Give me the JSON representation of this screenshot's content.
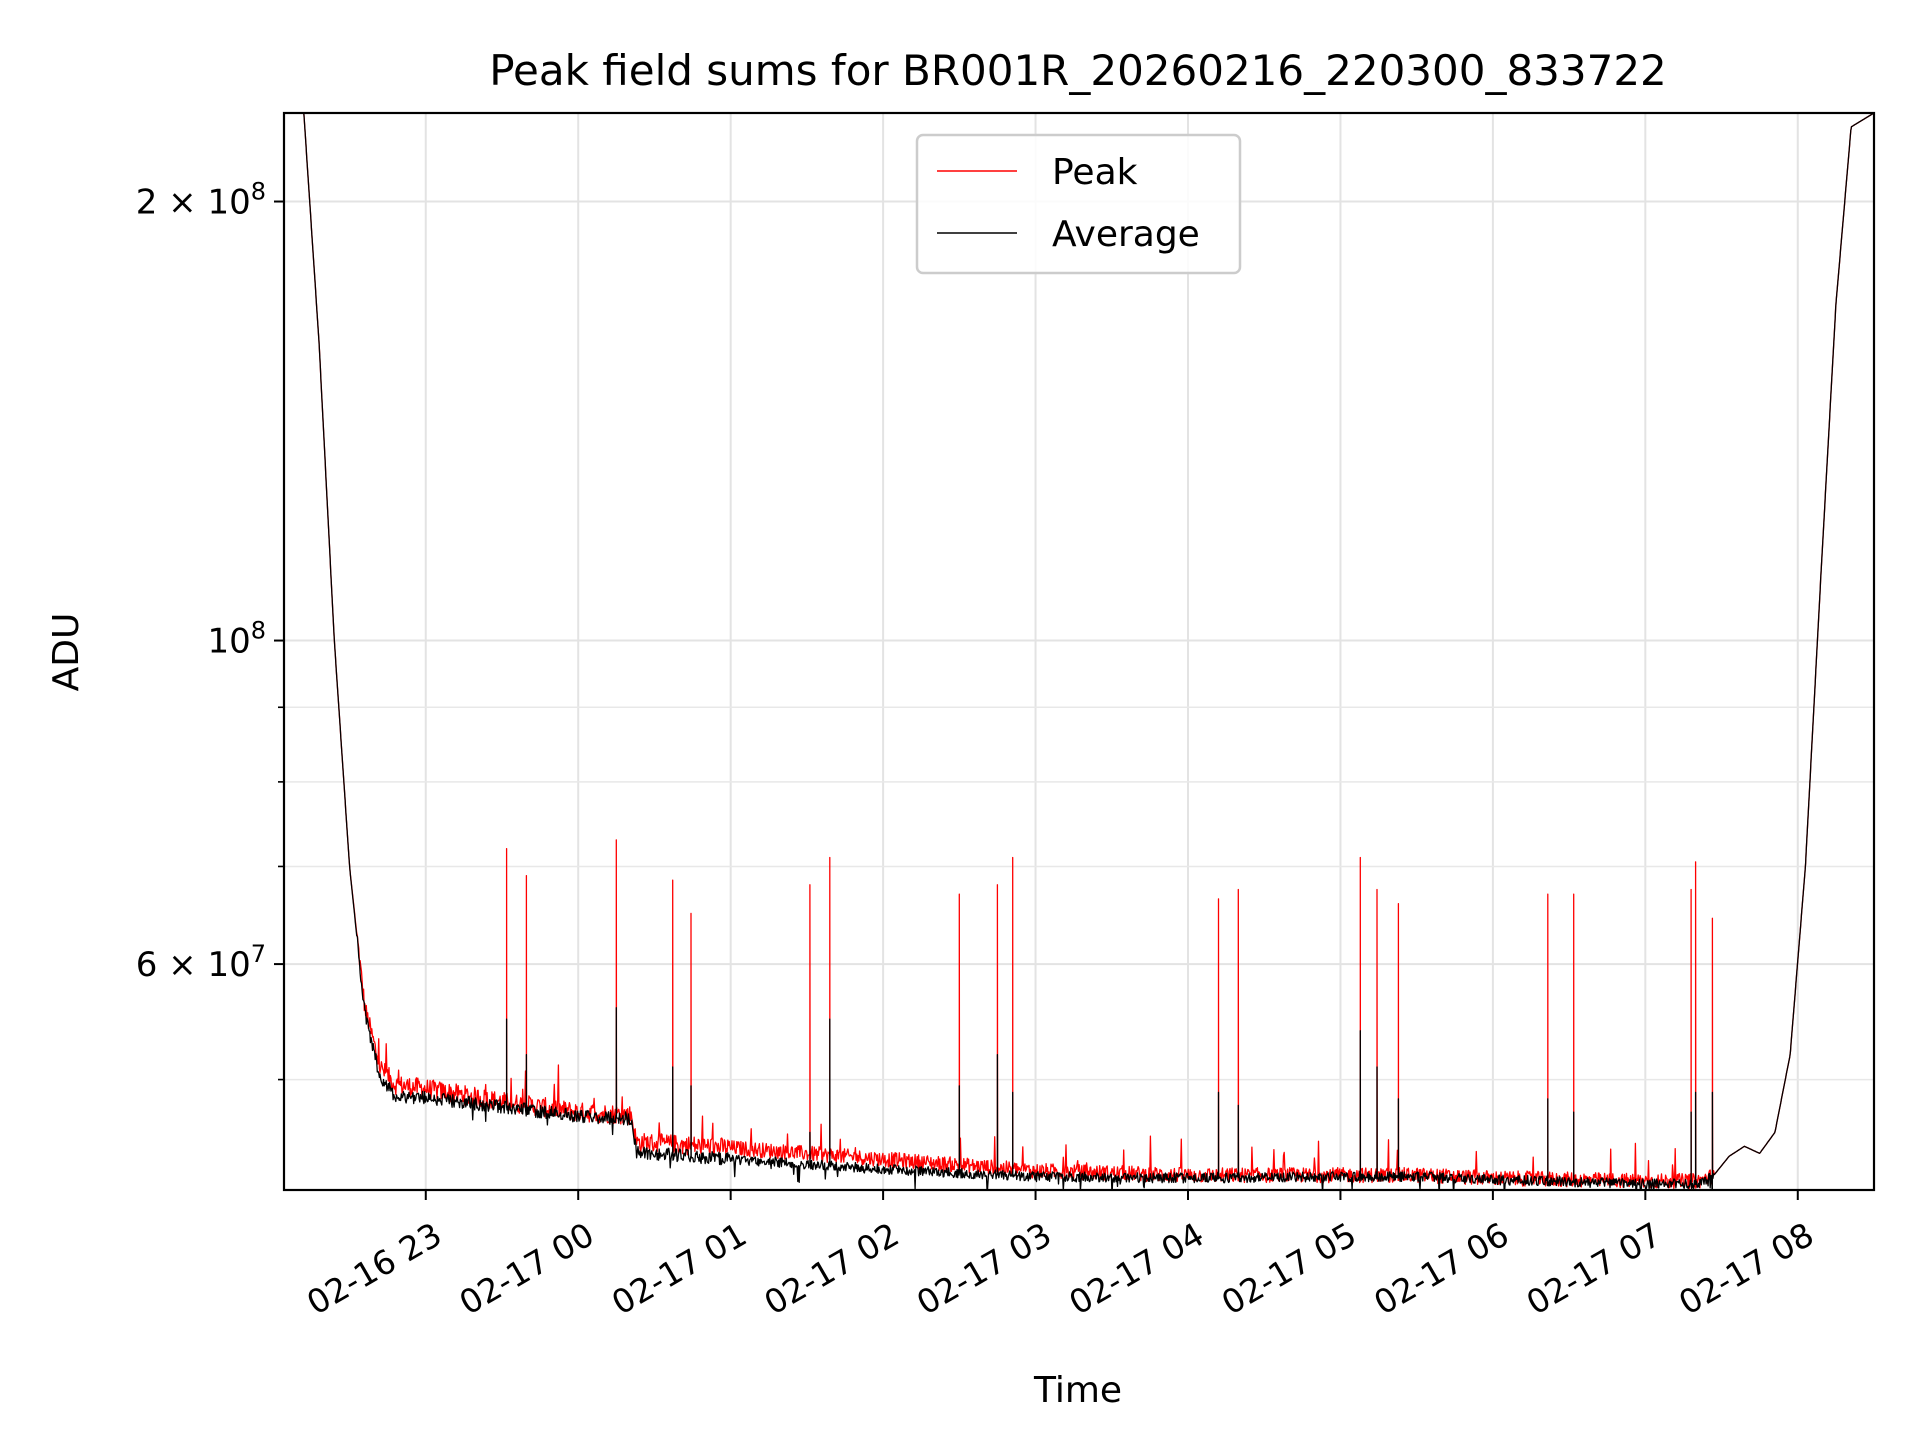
{
  "chart_data": {
    "type": "line",
    "title": "Peak field sums for BR001R_20260216_220300_833722",
    "xlabel": "Time",
    "ylabel": "ADU",
    "yscale": "log",
    "ylim": [
      42000000,
      230000000
    ],
    "xlim_hours": [
      -1.93,
      8.5
    ],
    "grid": true,
    "legend_position": "upper center",
    "x_ticks": [
      {
        "hour": -1,
        "label": "02-16 23"
      },
      {
        "hour": 0,
        "label": "02-17 00"
      },
      {
        "hour": 1,
        "label": "02-17 01"
      },
      {
        "hour": 2,
        "label": "02-17 02"
      },
      {
        "hour": 3,
        "label": "02-17 03"
      },
      {
        "hour": 4,
        "label": "02-17 04"
      },
      {
        "hour": 5,
        "label": "02-17 05"
      },
      {
        "hour": 6,
        "label": "02-17 06"
      },
      {
        "hour": 7,
        "label": "02-17 07"
      },
      {
        "hour": 8,
        "label": "02-17 08"
      }
    ],
    "y_major_ticks": [
      {
        "value": 60000000,
        "base": "6 × 10",
        "exp": "7"
      },
      {
        "value": 100000000,
        "base": "10",
        "exp": "8"
      },
      {
        "value": 200000000,
        "base": "2 × 10",
        "exp": "8"
      }
    ],
    "y_minor_ticks": [
      50000000,
      70000000,
      80000000,
      90000000
    ],
    "series": [
      {
        "name": "Peak",
        "color": "#ff0000",
        "baseline": [
          [
            -1.93,
            230000000
          ],
          [
            -1.8,
            230000000
          ],
          [
            -1.7,
            160000000
          ],
          [
            -1.6,
            100000000
          ],
          [
            -1.5,
            70000000
          ],
          [
            -1.4,
            56000000
          ],
          [
            -1.3,
            51000000
          ],
          [
            -1.2,
            49600000
          ],
          [
            -1.0,
            49300000
          ],
          [
            -0.5,
            48300000
          ],
          [
            0.0,
            47500000
          ],
          [
            0.35,
            47300000
          ],
          [
            0.38,
            45300000
          ],
          [
            1.0,
            44900000
          ],
          [
            2.0,
            44100000
          ],
          [
            3.0,
            43300000
          ],
          [
            4.0,
            43000000
          ],
          [
            5.0,
            43000000
          ],
          [
            5.5,
            43000000
          ],
          [
            6.0,
            42800000
          ],
          [
            7.0,
            42600000
          ],
          [
            7.35,
            42600000
          ],
          [
            7.45,
            43000000
          ],
          [
            7.55,
            44300000
          ],
          [
            7.65,
            45000000
          ],
          [
            7.75,
            44500000
          ],
          [
            7.85,
            46000000
          ],
          [
            7.95,
            52000000
          ],
          [
            8.05,
            70000000
          ],
          [
            8.15,
            110000000
          ],
          [
            8.25,
            170000000
          ],
          [
            8.35,
            225000000
          ],
          [
            8.5,
            230000000
          ]
        ],
        "noise_fraction": 0.012,
        "spikes": [
          {
            "hour": -0.47,
            "value": 72000000
          },
          {
            "hour": -0.34,
            "value": 69000000
          },
          {
            "hour": 0.25,
            "value": 73000000
          },
          {
            "hour": 0.62,
            "value": 68500000
          },
          {
            "hour": 0.74,
            "value": 65000000
          },
          {
            "hour": 1.52,
            "value": 68000000
          },
          {
            "hour": 1.65,
            "value": 71000000
          },
          {
            "hour": 2.5,
            "value": 67000000
          },
          {
            "hour": 2.75,
            "value": 68000000
          },
          {
            "hour": 2.85,
            "value": 71000000
          },
          {
            "hour": 4.2,
            "value": 66500000
          },
          {
            "hour": 4.33,
            "value": 67500000
          },
          {
            "hour": 5.13,
            "value": 71000000
          },
          {
            "hour": 5.24,
            "value": 67500000
          },
          {
            "hour": 5.38,
            "value": 66000000
          },
          {
            "hour": 6.36,
            "value": 67000000
          },
          {
            "hour": 6.53,
            "value": 67000000
          },
          {
            "hour": 7.3,
            "value": 67500000
          },
          {
            "hour": 7.33,
            "value": 70500000
          },
          {
            "hour": 7.44,
            "value": 64500000
          }
        ]
      },
      {
        "name": "Average",
        "color": "#000000",
        "baseline": [
          [
            -1.93,
            230000000
          ],
          [
            -1.8,
            230000000
          ],
          [
            -1.7,
            160000000
          ],
          [
            -1.6,
            100000000
          ],
          [
            -1.5,
            70000000
          ],
          [
            -1.4,
            55500000
          ],
          [
            -1.3,
            50200000
          ],
          [
            -1.2,
            48700000
          ],
          [
            -1.0,
            48600000
          ],
          [
            -0.5,
            47900000
          ],
          [
            0.0,
            47200000
          ],
          [
            0.35,
            47000000
          ],
          [
            0.38,
            44600000
          ],
          [
            1.0,
            44100000
          ],
          [
            2.0,
            43400000
          ],
          [
            3.0,
            42900000
          ],
          [
            4.0,
            42800000
          ],
          [
            5.0,
            42900000
          ],
          [
            5.5,
            42900000
          ],
          [
            6.0,
            42700000
          ],
          [
            7.0,
            42400000
          ],
          [
            7.35,
            42400000
          ],
          [
            7.45,
            43000000
          ],
          [
            7.55,
            44300000
          ],
          [
            7.65,
            45000000
          ],
          [
            7.75,
            44500000
          ],
          [
            7.85,
            46000000
          ],
          [
            7.95,
            52000000
          ],
          [
            8.05,
            70000000
          ],
          [
            8.15,
            110000000
          ],
          [
            8.25,
            170000000
          ],
          [
            8.35,
            225000000
          ],
          [
            8.5,
            230000000
          ]
        ],
        "noise_fraction": 0.008,
        "spikes": [
          {
            "hour": -0.47,
            "value": 55000000
          },
          {
            "hour": -0.34,
            "value": 52000000
          },
          {
            "hour": 0.25,
            "value": 56000000
          },
          {
            "hour": 0.62,
            "value": 51000000
          },
          {
            "hour": 0.74,
            "value": 49500000
          },
          {
            "hour": 1.52,
            "value": 46000000
          },
          {
            "hour": 1.65,
            "value": 55000000
          },
          {
            "hour": 2.5,
            "value": 49500000
          },
          {
            "hour": 2.75,
            "value": 52000000
          },
          {
            "hour": 2.85,
            "value": 49000000
          },
          {
            "hour": 4.2,
            "value": 49000000
          },
          {
            "hour": 4.33,
            "value": 48000000
          },
          {
            "hour": 5.13,
            "value": 54000000
          },
          {
            "hour": 5.24,
            "value": 51000000
          },
          {
            "hour": 5.38,
            "value": 48500000
          },
          {
            "hour": 6.36,
            "value": 48500000
          },
          {
            "hour": 6.53,
            "value": 47500000
          },
          {
            "hour": 7.3,
            "value": 47500000
          },
          {
            "hour": 7.33,
            "value": 49000000
          },
          {
            "hour": 7.44,
            "value": 49000000
          }
        ]
      }
    ]
  }
}
